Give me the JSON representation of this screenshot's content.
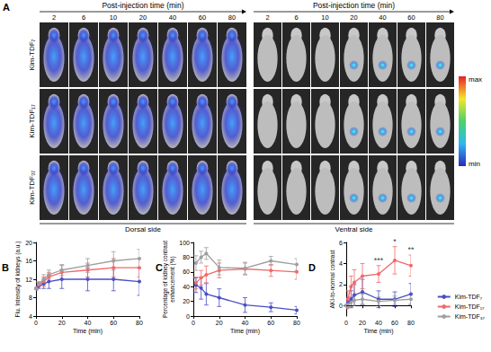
{
  "panel_a": {
    "label": "A",
    "sections": [
      {
        "header": "Post-injection time (min)",
        "times": [
          "2",
          "6",
          "10",
          "20",
          "40",
          "60",
          "80"
        ],
        "footer": "Dorsal side"
      },
      {
        "header": "Post-injection time (min)",
        "times": [
          "2",
          "6",
          "10",
          "20",
          "40",
          "60",
          "80"
        ],
        "footer": "Ventral side"
      }
    ],
    "rows": [
      "Kim-TDF₇",
      "Kim-TDF₁₇",
      "Kim-TDF₃₇"
    ],
    "colorbar": {
      "max": "max",
      "min": "min"
    }
  },
  "chart_data": [
    {
      "type": "line",
      "panel_label": "B",
      "xlabel": "Time (min)",
      "ylabel": "Flu. Intensity of kidneys (a.u.)",
      "x": [
        0,
        2,
        6,
        10,
        20,
        40,
        60,
        80
      ],
      "xlim": [
        0,
        80
      ],
      "xticks": [
        0,
        20,
        40,
        60,
        80
      ],
      "ylim": [
        4,
        20
      ],
      "yticks": [
        4,
        8,
        12,
        16,
        20
      ],
      "grid": false,
      "marker": "circle",
      "line_style": "solid",
      "series": [
        {
          "name": "Kim-TDF₇",
          "color": "#4a4fc4",
          "values": [
            10,
            10.5,
            11,
            11.5,
            12,
            12,
            12,
            11.5
          ],
          "errors": [
            0.3,
            0.5,
            1,
            1.5,
            2,
            2.5,
            2.5,
            3
          ]
        },
        {
          "name": "Kim-TDF₁₇",
          "color": "#f0696a",
          "values": [
            10,
            10.8,
            11.5,
            12.5,
            13.5,
            14,
            14.5,
            14.5
          ],
          "errors": [
            0.3,
            0.5,
            1,
            1,
            1.5,
            1.5,
            2,
            2
          ]
        },
        {
          "name": "Kim-TDF₃₇",
          "color": "#9e9e9e",
          "values": [
            10,
            11,
            12,
            13,
            14,
            15,
            16,
            16.5
          ],
          "errors": [
            0.3,
            0.5,
            1,
            1,
            1.2,
            1.5,
            2,
            2
          ]
        }
      ]
    },
    {
      "type": "line",
      "panel_label": "C",
      "xlabel": "Time (min)",
      "ylabel": "Percentage of kidney contrast\nenhancement (%)",
      "x": [
        2,
        6,
        10,
        20,
        40,
        60,
        80
      ],
      "xlim": [
        0,
        80
      ],
      "xticks": [
        0,
        20,
        40,
        60,
        80
      ],
      "ylim": [
        0,
        100
      ],
      "yticks": [
        0,
        20,
        40,
        60,
        80,
        100
      ],
      "grid": false,
      "marker": "circle",
      "line_style": "solid",
      "series": [
        {
          "name": "Kim-TDF₇",
          "color": "#4a4fc4",
          "values": [
            42,
            38,
            30,
            25,
            15,
            12,
            8
          ],
          "errors": [
            10,
            15,
            15,
            12,
            10,
            6,
            5
          ]
        },
        {
          "name": "Kim-TDF₁₇",
          "color": "#f0696a",
          "values": [
            45,
            52,
            56,
            62,
            64,
            62,
            60
          ],
          "errors": [
            8,
            10,
            12,
            10,
            8,
            8,
            10
          ]
        },
        {
          "name": "Kim-TDF₃₇",
          "color": "#9e9e9e",
          "values": [
            72,
            80,
            85,
            66,
            65,
            75,
            70
          ],
          "errors": [
            10,
            8,
            8,
            10,
            8,
            6,
            8
          ]
        }
      ]
    },
    {
      "type": "line",
      "panel_label": "D",
      "xlabel": "Time (min)",
      "ylabel": "AKI-to-normal contrast",
      "x": [
        0,
        2,
        6,
        10,
        20,
        40,
        60,
        80
      ],
      "xlim": [
        0,
        80
      ],
      "xticks": [
        0,
        20,
        40,
        60,
        80
      ],
      "ylim": [
        -1,
        6
      ],
      "yticks": [
        0,
        2,
        4,
        6
      ],
      "grid": false,
      "marker": "circle",
      "line_style": "solid",
      "legend": "right",
      "reference_line": {
        "y": 0,
        "line_style": "dashed"
      },
      "annotations": [
        {
          "x": 40,
          "y": 3.9,
          "text": "***"
        },
        {
          "x": 60,
          "y": 5.7,
          "text": "*"
        },
        {
          "x": 80,
          "y": 4.9,
          "text": "**"
        }
      ],
      "series": [
        {
          "name": "Kim-TDF₇",
          "color": "#4a4fc4",
          "values": [
            0,
            0.3,
            0.6,
            1.0,
            1.3,
            0.6,
            0.6,
            1.1
          ],
          "errors": [
            0.3,
            0.5,
            0.8,
            1,
            1.2,
            0.8,
            0.7,
            1.0
          ]
        },
        {
          "name": "Kim-TDF₁₇",
          "color": "#f0696a",
          "values": [
            0,
            0.6,
            1.8,
            2.2,
            2.8,
            3.0,
            4.3,
            3.8
          ],
          "errors": [
            0.3,
            0.8,
            1,
            1.2,
            1.2,
            0.8,
            1.3,
            1.0
          ]
        },
        {
          "name": "Kim-TDF₃₇",
          "color": "#9e9e9e",
          "values": [
            0,
            0.1,
            0.3,
            0.5,
            0.6,
            0.4,
            0.5,
            0.6
          ],
          "errors": [
            0.2,
            0.3,
            0.4,
            0.5,
            0.5,
            0.4,
            0.4,
            0.5
          ]
        }
      ]
    }
  ]
}
